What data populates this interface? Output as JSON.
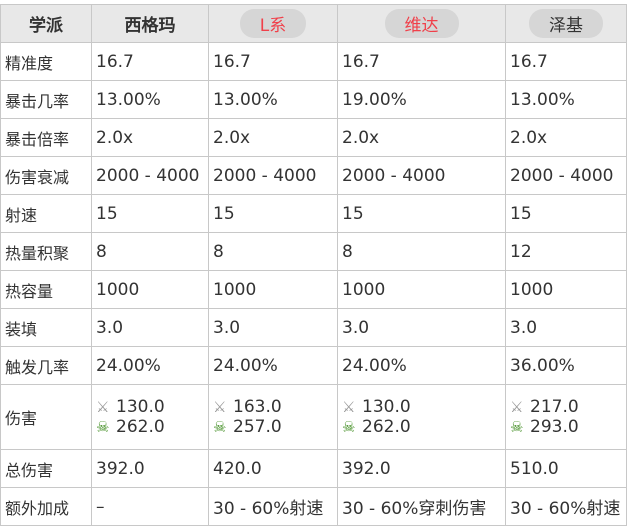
{
  "headers": [
    {
      "label": "学派",
      "red": false
    },
    {
      "label": "西格玛",
      "red": false
    },
    {
      "label": "L系",
      "red": true
    },
    {
      "label": "维达",
      "red": true
    },
    {
      "label": "泽基",
      "red": false
    }
  ],
  "rows": [
    {
      "label": "精准度",
      "values": [
        "16.7",
        "16.7",
        "16.7",
        "16.7"
      ]
    },
    {
      "label": "暴击几率",
      "values": [
        "13.00%",
        "13.00%",
        "19.00%",
        "13.00%"
      ]
    },
    {
      "label": "暴击倍率",
      "values": [
        "2.0x",
        "2.0x",
        "2.0x",
        "2.0x"
      ]
    },
    {
      "label": "伤害衰减",
      "values": [
        "2000 - 4000",
        "2000 - 4000",
        "2000 - 4000",
        "2000 - 4000"
      ]
    },
    {
      "label": "射速",
      "values": [
        "15",
        "15",
        "15",
        "15"
      ]
    },
    {
      "label": "热量积聚",
      "values": [
        "8",
        "8",
        "8",
        "12"
      ]
    },
    {
      "label": "热容量",
      "values": [
        "1000",
        "1000",
        "1000",
        "1000"
      ]
    },
    {
      "label": "装填",
      "values": [
        "3.0",
        "3.0",
        "3.0",
        "3.0"
      ]
    },
    {
      "label": "触发几率",
      "values": [
        "24.00%",
        "24.00%",
        "24.00%",
        "36.00%"
      ]
    }
  ],
  "damage": {
    "label": "伤害",
    "icons": [
      "slash-damage-icon",
      "toxin-damage-icon"
    ],
    "slash": [
      "130.0",
      "163.0",
      "130.0",
      "217.0"
    ],
    "toxin": [
      "262.0",
      "257.0",
      "262.0",
      "293.0"
    ]
  },
  "total": {
    "label": "总伤害",
    "values": [
      "392.0",
      "420.0",
      "392.0",
      "510.0"
    ]
  },
  "bonus": {
    "label": "额外加成",
    "values": [
      "–",
      "30 - 60%射速",
      "30 - 60%穿刺伤害",
      "30 - 60%射速"
    ]
  },
  "colors": {
    "header_red": "#f0404a",
    "header_bg": "#e8e8e8"
  }
}
